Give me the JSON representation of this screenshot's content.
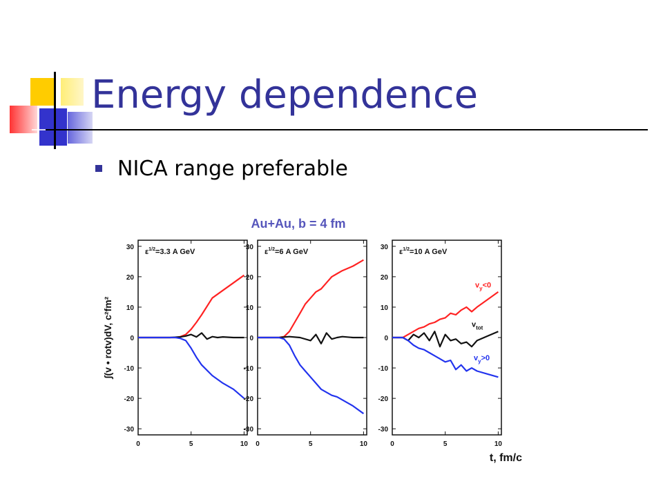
{
  "slide": {
    "title": "Energy dependence",
    "bullets": [
      "NICA range preferable"
    ],
    "accent_color": "#333399"
  },
  "decoration": {
    "icon": "tiled-squares-logo",
    "colors": [
      "#ffcc00",
      "#3333cc",
      "#ff3333"
    ]
  },
  "chart_data": {
    "type": "line",
    "title": "Au+Au,  b = 4 fm",
    "ylabel": "∫(v • rotv)dV, c²fm²",
    "xlabel": "t, fm/c",
    "xlim": [
      0,
      10.3
    ],
    "ylim": [
      -32,
      32
    ],
    "xticks": [
      0,
      5,
      10
    ],
    "yticks": [
      30,
      20,
      10,
      0,
      -10,
      -20,
      -30
    ],
    "grid": false,
    "series_colors": {
      "vy_neg": "#ff2222",
      "vtot": "#111111",
      "vy_pos": "#2233ee"
    },
    "panels": [
      {
        "label": "ε^{1/2}=3.3 A GeV",
        "series": [
          {
            "key": "vy_neg",
            "x": [
              0,
              1,
              2,
              3,
              3.5,
              4,
              4.5,
              5,
              5.5,
              6,
              7,
              8,
              9,
              10
            ],
            "y": [
              0,
              0,
              0,
              0,
              0,
              0.3,
              1,
              2.7,
              5,
              7.5,
              13,
              15.5,
              18,
              20.5
            ]
          },
          {
            "key": "vtot",
            "x": [
              0,
              1,
              2,
              3,
              4,
              4.5,
              5,
              5.5,
              6,
              6.5,
              7,
              7.5,
              8,
              9,
              10
            ],
            "y": [
              0,
              0,
              0,
              0,
              0.2,
              0.5,
              1,
              0.2,
              1.5,
              -0.5,
              0.3,
              0,
              0.2,
              0,
              0
            ]
          },
          {
            "key": "vy_pos",
            "x": [
              0,
              1,
              2,
              3,
              3.5,
              4,
              4.5,
              5,
              5.5,
              6,
              7,
              8,
              9,
              10
            ],
            "y": [
              0,
              0,
              0,
              0,
              0,
              -0.3,
              -1,
              -3.5,
              -6.5,
              -9,
              -12.5,
              -15,
              -17,
              -20
            ]
          }
        ]
      },
      {
        "label": "ε^{1/2}=6 A GeV",
        "series": [
          {
            "key": "vy_neg",
            "x": [
              0,
              2,
              2.5,
              3,
              3.5,
              4,
              4.5,
              5,
              5.5,
              6,
              6.5,
              7,
              7.5,
              8,
              9,
              10
            ],
            "y": [
              0,
              0,
              0.3,
              2,
              5,
              8,
              11,
              13,
              15,
              16,
              18,
              20,
              21,
              22,
              23.5,
              25.5
            ]
          },
          {
            "key": "vtot",
            "x": [
              0,
              1,
              2,
              3,
              4,
              5,
              5.5,
              6,
              6.5,
              7,
              7.5,
              8,
              9,
              10
            ],
            "y": [
              0,
              0,
              0,
              0.3,
              0,
              -1,
              1,
              -2,
              1.5,
              -0.5,
              0,
              0.3,
              0,
              0
            ]
          },
          {
            "key": "vy_pos",
            "x": [
              0,
              2,
              2.5,
              3,
              3.5,
              4,
              4.5,
              5,
              5.5,
              6,
              6.5,
              7,
              7.5,
              8,
              9,
              10
            ],
            "y": [
              0,
              0,
              -0.5,
              -2.5,
              -6,
              -9,
              -11,
              -13,
              -15,
              -17,
              -18,
              -19,
              -19.5,
              -20.5,
              -22.5,
              -25
            ]
          }
        ]
      },
      {
        "label": "ε^{1/2}=10 A GeV",
        "annotations": [
          "v_y<0",
          "v_tot",
          "v_y>0"
        ],
        "series": [
          {
            "key": "vy_neg",
            "x": [
              0,
              1,
              1.5,
              2,
              2.5,
              3,
              3.5,
              4,
              4.5,
              5,
              5.5,
              6,
              6.5,
              7,
              7.5,
              8,
              9,
              10
            ],
            "y": [
              0,
              0,
              1,
              2,
              3,
              3.5,
              4.5,
              5,
              6,
              6.5,
              8,
              7.5,
              9,
              10,
              8.5,
              10,
              12.5,
              15
            ]
          },
          {
            "key": "vtot",
            "x": [
              0,
              1,
              1.5,
              2,
              2.5,
              3,
              3.5,
              4,
              4.5,
              5,
              5.5,
              6,
              6.5,
              7,
              7.5,
              8,
              9,
              10
            ],
            "y": [
              0,
              0,
              -1,
              1,
              0,
              1.5,
              -1,
              2,
              -3,
              1,
              -1,
              -0.5,
              -2,
              -1.5,
              -3,
              -1,
              0.5,
              2
            ]
          },
          {
            "key": "vy_pos",
            "x": [
              0,
              1,
              1.5,
              2,
              2.5,
              3,
              3.5,
              4,
              4.5,
              5,
              5.5,
              6,
              6.5,
              7,
              7.5,
              8,
              9,
              10
            ],
            "y": [
              0,
              0,
              -1,
              -2.5,
              -3.5,
              -4,
              -5,
              -6,
              -7,
              -8,
              -7.5,
              -10.5,
              -9,
              -11,
              -10,
              -11,
              -12,
              -13
            ]
          }
        ]
      }
    ]
  }
}
